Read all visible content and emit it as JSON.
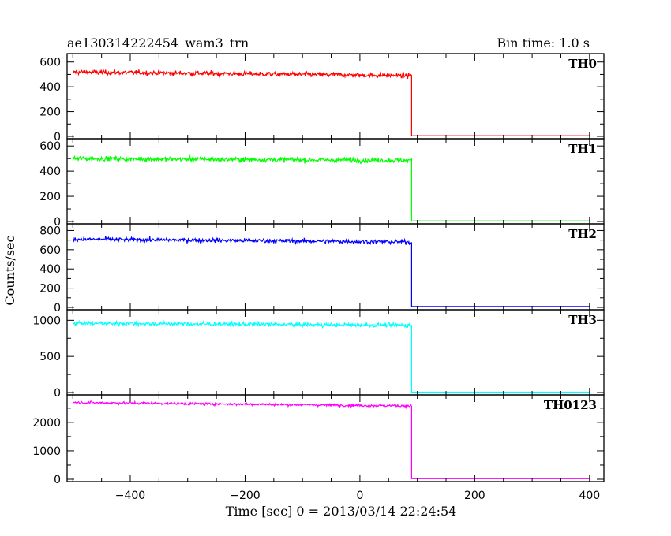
{
  "header": {
    "title": "ae130314222454_wam3_trn",
    "bin_time": "Bin time: 1.0 s"
  },
  "axes": {
    "ylabel": "Counts/sec",
    "xlabel": "Time [sec] 0 = 2013/03/14 22:24:54",
    "x_ticks": [
      "−400",
      "−200",
      "0",
      "200",
      "400"
    ]
  },
  "chart_data": {
    "type": "line",
    "xlabel": "Time [sec] 0 = 2013/03/14 22:24:54",
    "ylabel": "Counts/sec",
    "xlim": [
      -510,
      425
    ],
    "x_ticks": [
      -400,
      -200,
      0,
      200,
      400
    ],
    "step_time": 90,
    "start_time": -500,
    "end_time": 400,
    "panels": [
      {
        "name": "TH0",
        "color": "#ff0000",
        "ylim": [
          0,
          630
        ],
        "y_ticks": [
          0,
          200,
          400,
          600
        ],
        "tick_labels": [
          "0",
          "200",
          "400",
          "600"
        ],
        "level_start": 520,
        "level_end": 490,
        "noise": 30,
        "after": 5
      },
      {
        "name": "TH1",
        "color": "#00ff00",
        "ylim": [
          0,
          620
        ],
        "y_ticks": [
          0,
          200,
          400,
          600
        ],
        "tick_labels": [
          "0",
          "200",
          "400",
          "600"
        ],
        "level_start": 500,
        "level_end": 485,
        "noise": 30,
        "after": 5
      },
      {
        "name": "TH2",
        "color": "#0000ff",
        "ylim": [
          0,
          820
        ],
        "y_ticks": [
          0,
          200,
          400,
          600,
          800
        ],
        "tick_labels": [
          "0",
          "200",
          "400",
          "600",
          "800"
        ],
        "level_start": 710,
        "level_end": 680,
        "noise": 35,
        "after": 10
      },
      {
        "name": "TH3",
        "color": "#00ffff",
        "ylim": [
          0,
          1080
        ],
        "y_ticks": [
          0,
          500,
          1000
        ],
        "tick_labels": [
          "0",
          "500",
          "1000"
        ],
        "level_start": 960,
        "level_end": 930,
        "noise": 45,
        "after": 5
      },
      {
        "name": "TH0123",
        "color": "#ff00ff",
        "ylim": [
          0,
          2800
        ],
        "y_ticks": [
          0,
          1000,
          2000
        ],
        "tick_labels": [
          "0",
          "1000",
          "2000"
        ],
        "level_start": 2700,
        "level_end": 2580,
        "noise": 70,
        "after": 20
      }
    ]
  }
}
